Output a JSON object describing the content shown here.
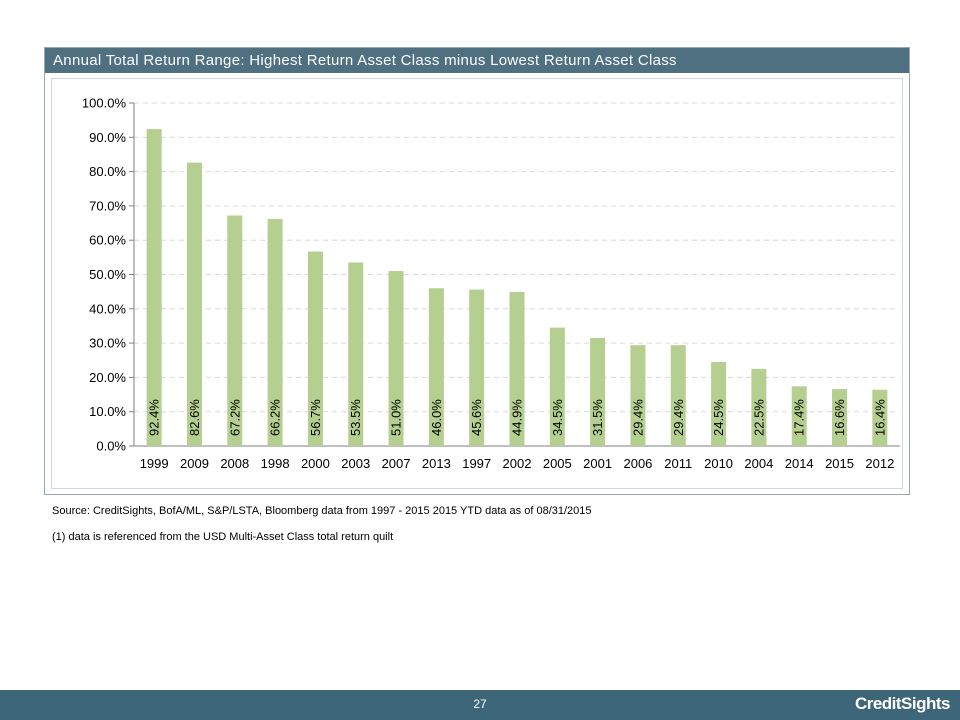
{
  "panel": {
    "title": "Annual Total Return Range: Highest Return Asset Class minus Lowest Return Asset Class"
  },
  "footnotes": {
    "source": "Source: CreditSights, BofA/ML, S&P/LSTA, Bloomberg     data from 1997 - 2015  2015 YTD data as of 08/31/2015",
    "note": "(1) data is referenced from the USD Multi-Asset Class total return quilt"
  },
  "footer": {
    "page_number": "27",
    "logo": "CreditSights"
  },
  "colors": {
    "bar": "#b5cf90",
    "header": "#4f7080",
    "footer": "#3e6679"
  },
  "chart_data": {
    "type": "bar",
    "title": "Annual Total Return Range: Highest Return Asset Class minus Lowest Return Asset Class",
    "categories": [
      "1999",
      "2009",
      "2008",
      "1998",
      "2000",
      "2003",
      "2007",
      "2013",
      "1997",
      "2002",
      "2005",
      "2001",
      "2006",
      "2011",
      "2010",
      "2004",
      "2014",
      "2015",
      "2012"
    ],
    "values": [
      92.4,
      82.6,
      67.2,
      66.2,
      56.7,
      53.5,
      51.0,
      46.0,
      45.6,
      44.9,
      34.5,
      31.5,
      29.4,
      29.4,
      24.5,
      22.5,
      17.4,
      16.6,
      16.4
    ],
    "data_labels": [
      "92.4%",
      "82.6%",
      "67.2%",
      "66.2%",
      "56.7%",
      "53.5%",
      "51.0%",
      "46.0%",
      "45.6%",
      "44.9%",
      "34.5%",
      "31.5%",
      "29.4%",
      "29.4%",
      "24.5%",
      "22.5%",
      "17.4%",
      "16.6%",
      "16.4%"
    ],
    "ylim": [
      0,
      100
    ],
    "yticks": [
      0,
      10,
      20,
      30,
      40,
      50,
      60,
      70,
      80,
      90,
      100
    ],
    "ytick_labels": [
      "0.0%",
      "10.0%",
      "20.0%",
      "30.0%",
      "40.0%",
      "50.0%",
      "60.0%",
      "70.0%",
      "80.0%",
      "90.0%",
      "100.0%"
    ],
    "grid": true,
    "legend": "none",
    "xlabel": "",
    "ylabel": ""
  }
}
